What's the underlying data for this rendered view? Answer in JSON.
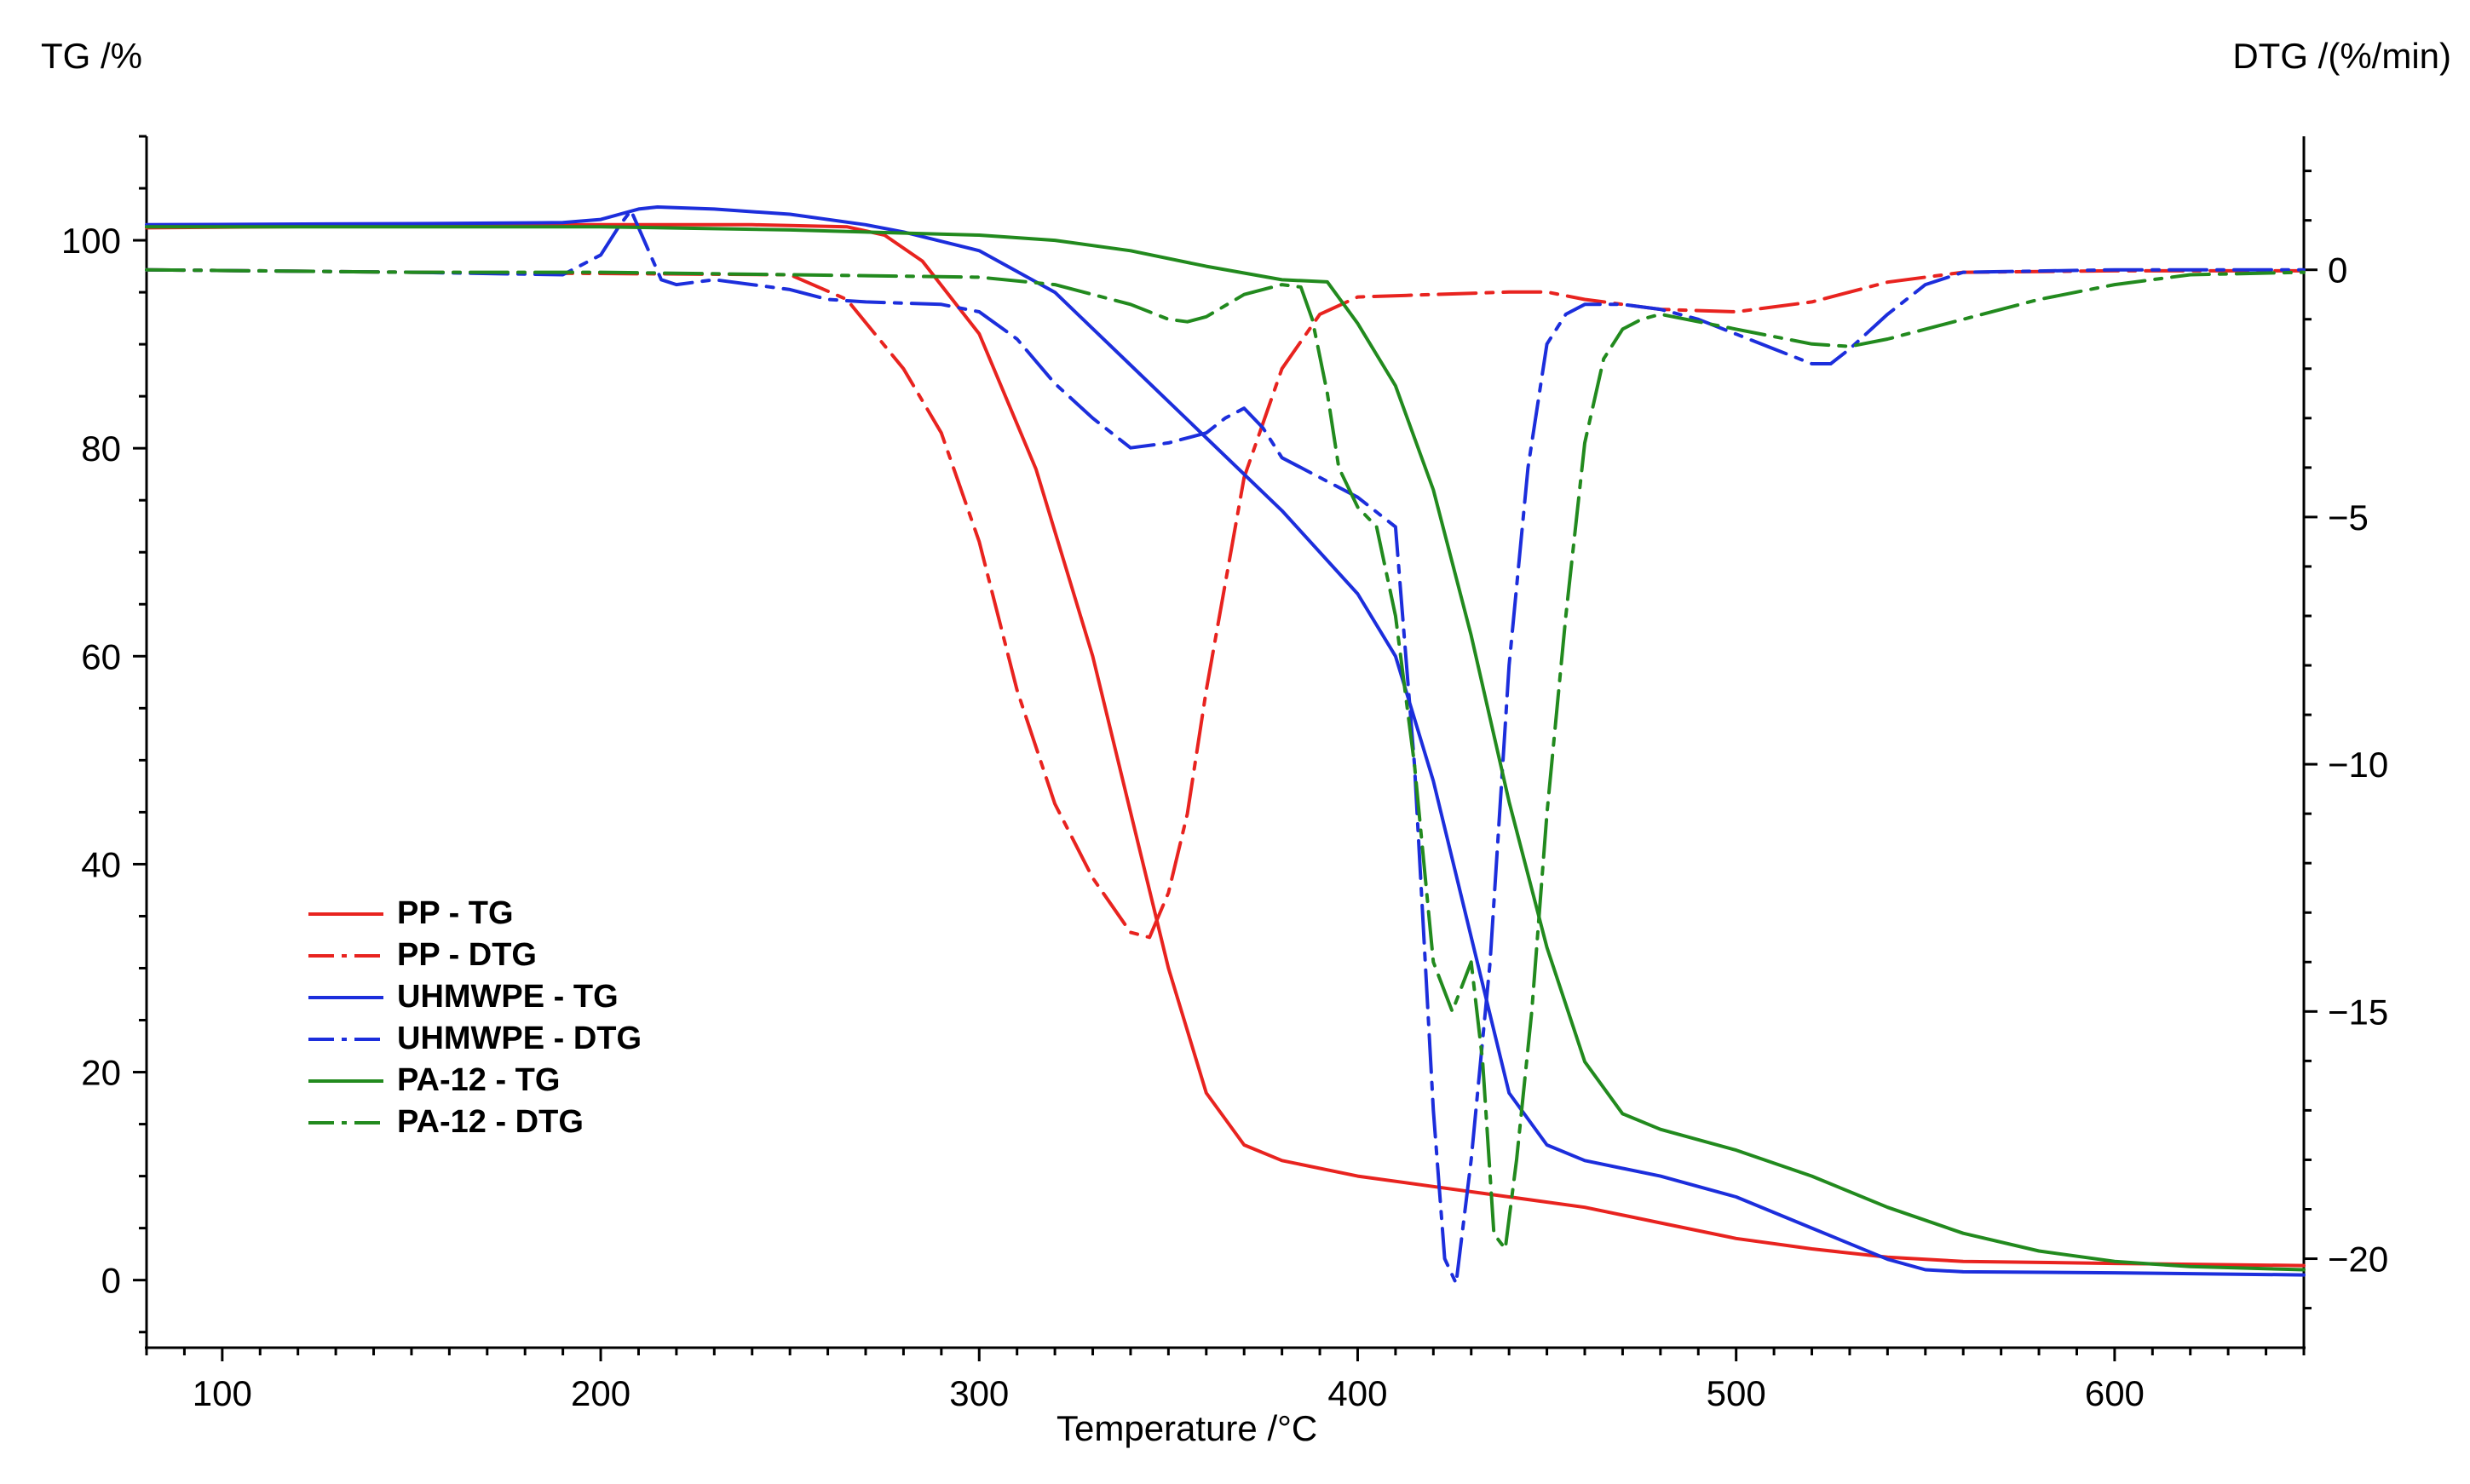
{
  "chart_data": {
    "type": "line",
    "y_left_label": "TG /%",
    "y_right_label": "DTG /(%/min)",
    "xlabel": "Temperature /°C",
    "xlim": [
      80,
      650
    ],
    "ylim_left": [
      -6.5,
      110
    ],
    "ylim_right": [
      -21.8,
      2.7
    ],
    "x_ticks": [
      100,
      200,
      300,
      400,
      500,
      600
    ],
    "y_left_ticks": [
      0,
      20,
      40,
      60,
      80,
      100
    ],
    "y_right_ticks": [
      0,
      -5,
      -10,
      -15,
      -20
    ],
    "x_tick_labels": [
      "100",
      "200",
      "300",
      "400",
      "500",
      "600"
    ],
    "y_left_tick_labels": [
      "0",
      "20",
      "40",
      "60",
      "80",
      "100"
    ],
    "y_right_tick_labels": [
      "0",
      "−5",
      "−10",
      "−15",
      "−20"
    ],
    "legend_position": "lower-left",
    "series": [
      {
        "name": "PP - TG",
        "label": "PP - TG",
        "color": "#e8231f",
        "dash": "solid",
        "axis": "left",
        "x": [
          80,
          150,
          200,
          240,
          265,
          275,
          285,
          300,
          315,
          330,
          340,
          350,
          360,
          370,
          380,
          400,
          420,
          440,
          460,
          480,
          500,
          520,
          540,
          560,
          600,
          650
        ],
        "y": [
          101.2,
          101.4,
          101.5,
          101.5,
          101.3,
          100.5,
          98,
          91,
          78,
          60,
          45,
          30,
          18,
          13,
          11.5,
          10,
          9,
          8,
          7,
          5.5,
          4,
          3,
          2.2,
          1.8,
          1.6,
          1.4
        ]
      },
      {
        "name": "PP - DTG",
        "label": "PP - DTG",
        "color": "#e8231f",
        "dash": "dashdot",
        "axis": "right",
        "x": [
          80,
          150,
          250,
          265,
          280,
          290,
          300,
          310,
          320,
          330,
          340,
          345,
          350,
          355,
          360,
          370,
          380,
          390,
          400,
          420,
          440,
          450,
          460,
          480,
          500,
          520,
          540,
          560,
          600,
          650
        ],
        "y": [
          0,
          -0.05,
          -0.1,
          -0.6,
          -2,
          -3.3,
          -5.5,
          -8.5,
          -10.8,
          -12.3,
          -13.4,
          -13.5,
          -12.6,
          -11,
          -8.5,
          -4.2,
          -2,
          -0.9,
          -0.55,
          -0.5,
          -0.45,
          -0.45,
          -0.6,
          -0.8,
          -0.85,
          -0.65,
          -0.25,
          -0.05,
          -0.02,
          -0.02
        ]
      },
      {
        "name": "UHMWPE - TG",
        "label": "UHMWPE - TG",
        "color": "#1c2edc",
        "dash": "solid",
        "axis": "left",
        "x": [
          80,
          150,
          190,
          200,
          205,
          210,
          215,
          230,
          250,
          270,
          280,
          300,
          320,
          340,
          360,
          380,
          400,
          410,
          420,
          430,
          440,
          450,
          460,
          480,
          500,
          520,
          540,
          550,
          560,
          600,
          650
        ],
        "y": [
          101.5,
          101.6,
          101.7,
          102,
          102.5,
          103,
          103.2,
          103,
          102.5,
          101.5,
          100.8,
          99,
          95,
          88,
          81,
          74,
          66,
          60,
          48,
          33,
          18,
          13,
          11.5,
          10,
          8,
          5,
          2,
          1,
          0.8,
          0.7,
          0.5
        ]
      },
      {
        "name": "UHMWPE - DTG",
        "label": "UHMWPE - DTG",
        "color": "#1c2edc",
        "dash": "dashdot",
        "axis": "right",
        "x": [
          80,
          150,
          190,
          200,
          205,
          208,
          212,
          216,
          220,
          230,
          240,
          250,
          260,
          270,
          290,
          300,
          310,
          320,
          330,
          340,
          350,
          360,
          365,
          370,
          375,
          380,
          390,
          400,
          410,
          415,
          420,
          423,
          426,
          430,
          435,
          440,
          445,
          450,
          455,
          460,
          470,
          480,
          490,
          500,
          510,
          520,
          525,
          530,
          540,
          550,
          560,
          600,
          650
        ],
        "y": [
          0,
          -0.05,
          -0.1,
          0.3,
          0.9,
          1.2,
          0.5,
          -0.2,
          -0.3,
          -0.2,
          -0.3,
          -0.4,
          -0.6,
          -0.65,
          -0.7,
          -0.85,
          -1.4,
          -2.3,
          -3,
          -3.6,
          -3.5,
          -3.3,
          -3,
          -2.8,
          -3.2,
          -3.8,
          -4.2,
          -4.6,
          -5.2,
          -10,
          -17,
          -20,
          -20.5,
          -18,
          -14,
          -8,
          -4,
          -1.5,
          -0.9,
          -0.7,
          -0.7,
          -0.8,
          -1,
          -1.3,
          -1.6,
          -1.9,
          -1.9,
          -1.6,
          -0.9,
          -0.3,
          -0.05,
          0,
          0
        ]
      },
      {
        "name": "PA-12 - TG",
        "label": "PA-12 - TG",
        "color": "#228a1e",
        "dash": "solid",
        "axis": "left",
        "x": [
          80,
          150,
          200,
          250,
          300,
          320,
          340,
          360,
          380,
          392,
          400,
          410,
          420,
          430,
          440,
          450,
          460,
          470,
          480,
          500,
          520,
          540,
          560,
          580,
          600,
          620,
          650
        ],
        "y": [
          101.3,
          101.3,
          101.3,
          101,
          100.5,
          100,
          99,
          97.5,
          96.2,
          96,
          92,
          86,
          76,
          62,
          46,
          32,
          21,
          16,
          14.5,
          12.5,
          10,
          7,
          4.5,
          2.8,
          1.8,
          1.3,
          1
        ]
      },
      {
        "name": "PA-12 - DTG",
        "label": "PA-12 - DTG",
        "color": "#228a1e",
        "dash": "dashdot",
        "axis": "right",
        "x": [
          80,
          150,
          200,
          250,
          300,
          320,
          340,
          350,
          355,
          360,
          370,
          380,
          385,
          388,
          392,
          395,
          400,
          405,
          410,
          415,
          420,
          425,
          430,
          433,
          436,
          439,
          442,
          446,
          450,
          455,
          460,
          465,
          470,
          475,
          480,
          500,
          520,
          530,
          540,
          560,
          580,
          600,
          620,
          650
        ],
        "y": [
          0,
          -0.05,
          -0.05,
          -0.1,
          -0.15,
          -0.3,
          -0.7,
          -1,
          -1.05,
          -0.95,
          -0.5,
          -0.3,
          -0.35,
          -1,
          -2.5,
          -4,
          -4.8,
          -5.2,
          -7,
          -10,
          -14,
          -15,
          -14,
          -16,
          -19.5,
          -19.8,
          -18,
          -15,
          -11,
          -7,
          -3.5,
          -1.8,
          -1.2,
          -1,
          -0.9,
          -1.2,
          -1.5,
          -1.55,
          -1.4,
          -1,
          -0.6,
          -0.3,
          -0.1,
          -0.05
        ]
      }
    ]
  }
}
